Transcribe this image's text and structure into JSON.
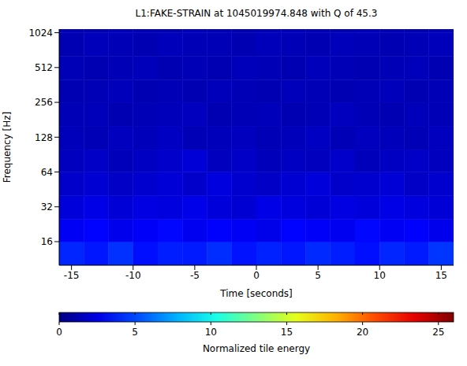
{
  "chart_data": {
    "type": "heatmap",
    "title": "L1:FAKE-STRAIN at 1045019974.848 with Q of 45.3",
    "x_label": "Time [seconds]",
    "y_label": "Frequency [Hz]",
    "log": "y",
    "grid": false,
    "xlim": [
      -16,
      16
    ],
    "xticks": [
      -15,
      -10,
      -5,
      0,
      5,
      10,
      15
    ],
    "ylim": [
      10,
      1100
    ],
    "yticks": [
      16,
      32,
      64,
      128,
      256,
      512,
      1024
    ],
    "x_edges": [
      -16,
      -14,
      -12,
      -10,
      -8,
      -6,
      -4,
      -2,
      0,
      2,
      4,
      6,
      8,
      10,
      12,
      14,
      16
    ],
    "y_edges": [
      10,
      16,
      25,
      40,
      64,
      100,
      160,
      256,
      400,
      640,
      1024,
      1100
    ],
    "cells": [
      [
        4.2,
        3.8,
        4.5,
        3.6,
        4.0,
        3.9,
        4.4,
        3.7,
        4.1,
        3.8,
        4.3,
        4.0,
        3.6,
        4.2,
        3.9,
        4.6
      ],
      [
        3.0,
        3.3,
        2.8,
        3.1,
        3.4,
        2.9,
        3.2,
        3.0,
        2.7,
        3.3,
        3.1,
        2.9,
        3.4,
        3.0,
        3.2,
        2.8
      ],
      [
        2.3,
        2.6,
        2.2,
        2.5,
        2.4,
        2.7,
        2.3,
        2.1,
        2.6,
        2.4,
        2.2,
        2.5,
        2.3,
        2.6,
        2.4,
        2.2
      ],
      [
        1.9,
        2.1,
        1.8,
        2.0,
        2.2,
        1.9,
        2.4,
        2.0,
        1.8,
        2.1,
        2.3,
        1.9,
        2.0,
        2.2,
        1.8,
        2.0
      ],
      [
        1.6,
        1.8,
        1.5,
        1.7,
        1.9,
        2.2,
        1.6,
        1.8,
        1.5,
        1.7,
        1.6,
        1.9,
        1.5,
        1.7,
        1.8,
        1.6
      ],
      [
        1.5,
        1.4,
        1.6,
        1.5,
        1.7,
        1.4,
        1.5,
        1.6,
        1.4,
        1.5,
        1.7,
        1.4,
        1.6,
        1.5,
        1.4,
        1.6
      ],
      [
        1.4,
        1.5,
        1.3,
        1.4,
        1.5,
        1.6,
        1.3,
        1.4,
        1.5,
        1.3,
        1.4,
        1.6,
        1.4,
        1.3,
        1.5,
        1.4
      ],
      [
        1.3,
        1.4,
        1.5,
        1.3,
        1.4,
        1.3,
        1.5,
        1.4,
        1.3,
        1.5,
        1.4,
        1.3,
        1.4,
        1.5,
        1.3,
        1.4
      ],
      [
        1.4,
        1.3,
        1.4,
        1.5,
        1.3,
        1.4,
        1.3,
        1.5,
        1.4,
        1.3,
        1.5,
        1.4,
        1.3,
        1.4,
        1.5,
        1.3
      ],
      [
        1.3,
        1.5,
        1.4,
        1.3,
        1.5,
        1.4,
        1.4,
        1.3,
        1.5,
        1.4,
        1.3,
        1.5,
        1.4,
        1.3,
        1.4,
        1.5
      ],
      [
        1.4,
        1.3,
        1.5,
        1.4,
        1.3,
        1.5,
        1.4,
        1.3,
        1.4,
        1.5,
        1.4,
        1.3,
        1.5,
        1.4,
        1.3,
        1.4
      ]
    ],
    "colorbar": {
      "label": "Normalized tile energy",
      "range": [
        0,
        26
      ],
      "ticks": [
        0,
        5,
        10,
        15,
        20,
        25
      ]
    }
  }
}
